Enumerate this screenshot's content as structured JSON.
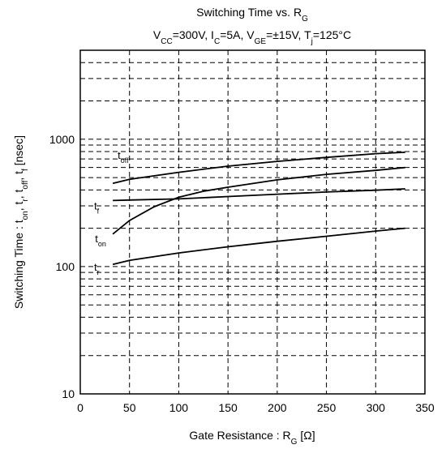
{
  "chart_data": {
    "type": "line",
    "title": {
      "main": "Switching Time vs. R",
      "main_sub": "G",
      "subtitle": [
        {
          "t": "V",
          "sub": false
        },
        {
          "t": "CC",
          "sub": true
        },
        {
          "t": "=300V, I",
          "sub": false
        },
        {
          "t": "C",
          "sub": true
        },
        {
          "t": "=5A, V",
          "sub": false
        },
        {
          "t": "GE",
          "sub": true
        },
        {
          "t": "=±15V, T",
          "sub": false
        },
        {
          "t": "j",
          "sub": true
        },
        {
          "t": "=125°C",
          "sub": false
        }
      ]
    },
    "xlabel": {
      "main": "Gate Resistance  : R",
      "sub": "G",
      "unit": "  [Ω]"
    },
    "ylabel": [
      {
        "t": "Switching Time : t",
        "sub": false
      },
      {
        "t": "on",
        "sub": true
      },
      {
        "t": ", t",
        "sub": false
      },
      {
        "t": "r",
        "sub": true
      },
      {
        "t": ", t",
        "sub": false
      },
      {
        "t": "off",
        "sub": true
      },
      {
        "t": ", t",
        "sub": false
      },
      {
        "t": "f",
        "sub": true
      },
      {
        "t": "  [nsec]",
        "sub": false
      }
    ],
    "x_ticks": [
      "0",
      "50",
      "100",
      "150",
      "200",
      "250",
      "300",
      "350"
    ],
    "y_ticks": [
      "10",
      "100",
      "1000"
    ],
    "xlim": [
      0,
      350
    ],
    "ylim": [
      10,
      5000
    ],
    "y_scale": "log",
    "grid": true,
    "series": [
      {
        "name": "off",
        "x": [
          33,
          50,
          100,
          150,
          200,
          250,
          300,
          330
        ],
        "y": [
          450,
          485,
          550,
          615,
          670,
          720,
          770,
          790
        ]
      },
      {
        "name": "r",
        "x": [
          33,
          50,
          75,
          100,
          125,
          150,
          200,
          250,
          300,
          330
        ],
        "y": [
          180,
          230,
          295,
          350,
          390,
          420,
          480,
          530,
          570,
          600
        ]
      },
      {
        "name": "f",
        "x": [
          33,
          50,
          100,
          150,
          200,
          250,
          300,
          330
        ],
        "y": [
          330,
          333,
          340,
          355,
          370,
          385,
          398,
          408
        ]
      },
      {
        "name": "on",
        "x": [
          33,
          50,
          100,
          150,
          200,
          250,
          300,
          330
        ],
        "y": [
          104,
          112,
          128,
          143,
          158,
          173,
          190,
          200
        ]
      }
    ],
    "annotations": [
      {
        "t": "t",
        "sub": "off",
        "x": 38,
        "y": 700
      },
      {
        "t": "t",
        "sub": "f",
        "x": 14,
        "y": 280
      },
      {
        "t": "t",
        "sub": "on",
        "x": 15,
        "y": 155
      },
      {
        "t": "t",
        "sub": "r",
        "x": 14,
        "y": 93
      }
    ]
  }
}
